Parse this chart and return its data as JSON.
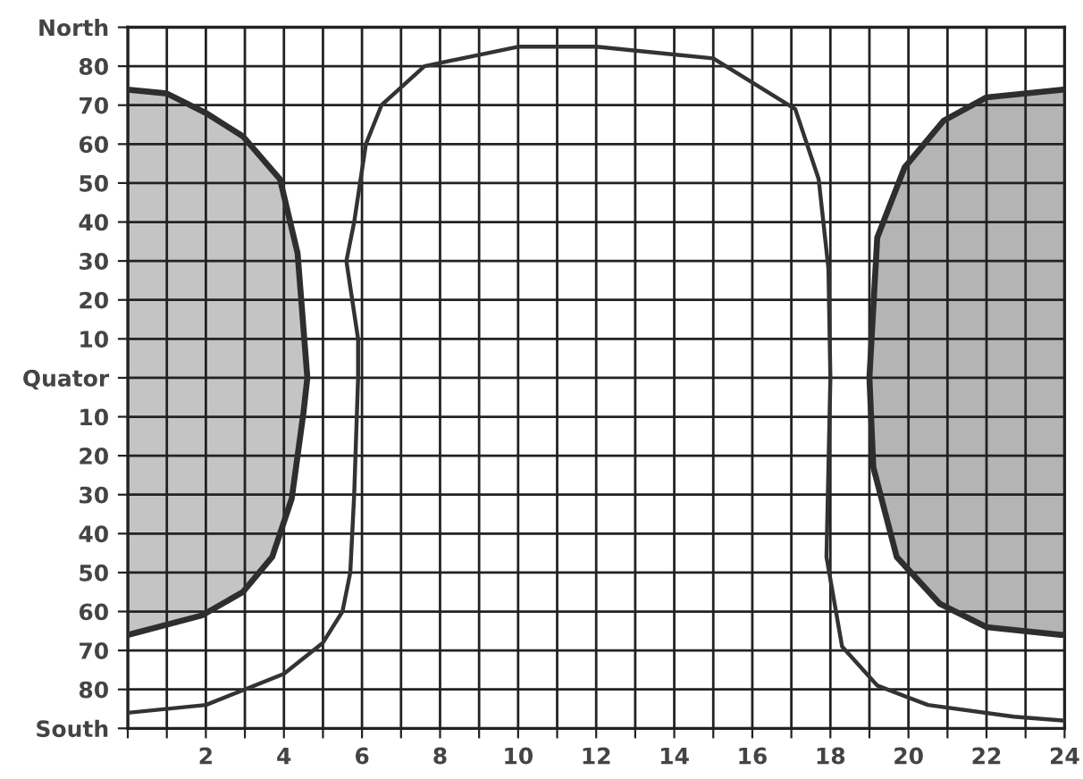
{
  "chart_data": {
    "type": "line",
    "xlim": [
      0,
      24
    ],
    "xticks": [
      {
        "value": 0,
        "label": null
      },
      {
        "value": 1,
        "label": null
      },
      2,
      {
        "value": 3,
        "label": null
      },
      4,
      {
        "value": 5,
        "label": null
      },
      6,
      {
        "value": 7,
        "label": null
      },
      8,
      {
        "value": 9,
        "label": null
      },
      10,
      {
        "value": 11,
        "label": null
      },
      12,
      {
        "value": 13,
        "label": null
      },
      14,
      {
        "value": 15,
        "label": null
      },
      16,
      {
        "value": 17,
        "label": null
      },
      18,
      {
        "value": 19,
        "label": null
      },
      20,
      {
        "value": 21,
        "label": null
      },
      22,
      {
        "value": 23,
        "label": null
      },
      24
    ],
    "ylim": [
      -90,
      90
    ],
    "yticks": [
      {
        "value": -90,
        "label": "South"
      },
      {
        "value": -80,
        "label": "80"
      },
      {
        "value": -70,
        "label": "70"
      },
      {
        "value": -60,
        "label": "60"
      },
      {
        "value": -50,
        "label": "50"
      },
      {
        "value": -40,
        "label": "40"
      },
      {
        "value": -30,
        "label": "30"
      },
      {
        "value": -20,
        "label": "20"
      },
      {
        "value": -10,
        "label": "10"
      },
      {
        "value": 0,
        "label": "Quator"
      },
      10,
      20,
      30,
      40,
      50,
      60,
      70,
      80,
      {
        "value": 90,
        "label": "North"
      }
    ],
    "grid": true,
    "series": [
      {
        "type": "area",
        "color": "#c4c4c4",
        "x": [
          0,
          1,
          2,
          2.95,
          3.9,
          4.35,
          4.6,
          4.5,
          4.2,
          3.7,
          2.95,
          1.9,
          0
        ],
        "values": [
          74,
          73,
          68,
          62,
          51,
          32,
          0,
          -9,
          -31,
          -46,
          -55,
          -61,
          -66
        ]
      },
      {
        "type": "area",
        "color": "#b4b4b4",
        "x": [
          24,
          22,
          20.9,
          19.9,
          19.2,
          19.0,
          19.1,
          19.7,
          20.8,
          22,
          23.9,
          24
        ],
        "values": [
          74,
          72,
          66,
          54,
          36,
          0,
          -23,
          -46,
          -58,
          -64,
          -66,
          -66
        ]
      },
      {
        "color": "#333333",
        "x": [
          0,
          2,
          3,
          4,
          5,
          5.5,
          5.7,
          5.8,
          5.9,
          5.9,
          5.6,
          5.8,
          5.95,
          6.1,
          6.5,
          7.6,
          10,
          12,
          15,
          17.1,
          17.7,
          17.95,
          18,
          17.9,
          18.3,
          19.2,
          20.5,
          22.7,
          24
        ],
        "values": [
          -86,
          -84,
          -80,
          -76,
          -68,
          -60,
          -50,
          -30,
          0,
          10,
          30,
          40,
          50,
          60,
          70,
          80,
          85,
          85,
          82,
          69,
          51,
          28,
          0,
          -46,
          -69,
          -79,
          -84,
          -87,
          -88
        ]
      }
    ]
  }
}
